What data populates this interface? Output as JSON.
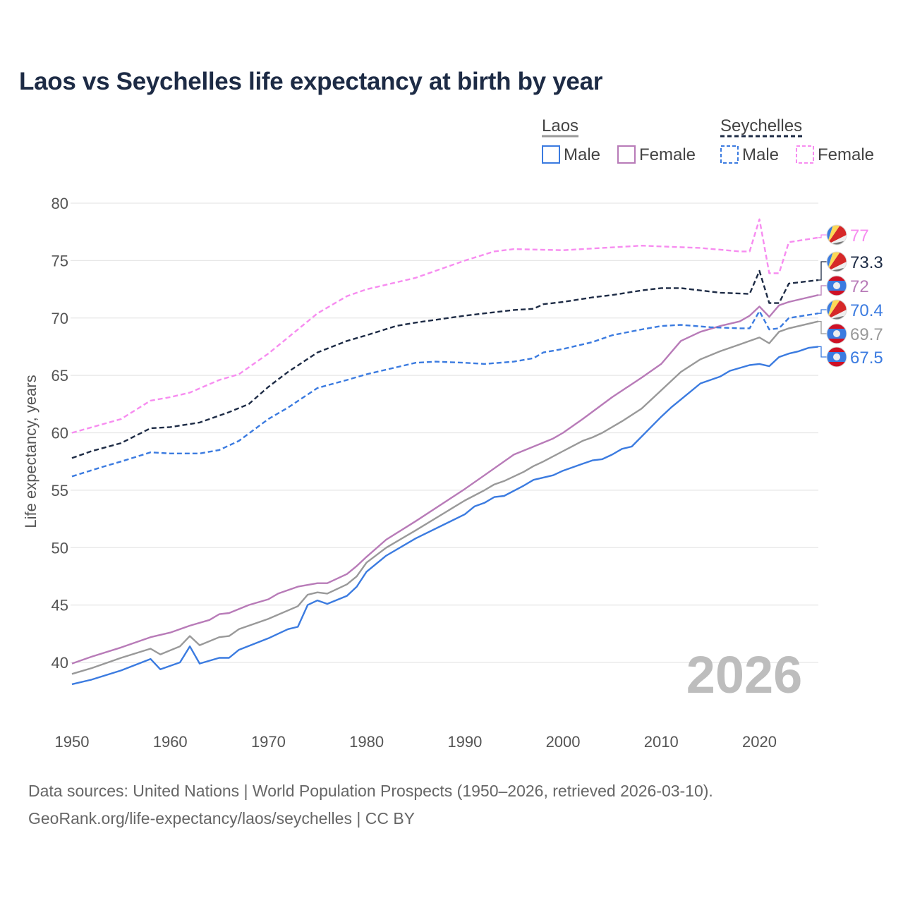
{
  "title": "Laos vs Seychelles life expectancy at birth by year",
  "legend": {
    "groups": [
      {
        "label": "Laos",
        "items": [
          "Male",
          "Female"
        ]
      },
      {
        "label": "Seychelles",
        "items": [
          "Male",
          "Female"
        ]
      }
    ]
  },
  "year_watermark": "2026",
  "footer": {
    "line1": "Data sources: United Nations | World Population Prospects (1950–2026, retrieved 2026-03-10).",
    "line2": "GeoRank.org/life-expectancy/laos/seychelles | CC BY"
  },
  "chart_data": {
    "type": "line",
    "title": "Laos vs Seychelles life expectancy at birth by year",
    "xlabel": "",
    "ylabel": "Life expectancy, years",
    "xlim": [
      1950,
      2026
    ],
    "ylim": [
      36,
      80
    ],
    "xticks": [
      "1950",
      "1960",
      "1970",
      "1980",
      "1990",
      "2000",
      "2010",
      "2020"
    ],
    "yticks": [
      "40",
      "45",
      "50",
      "55",
      "60",
      "65",
      "70",
      "75",
      "80"
    ],
    "grid": true,
    "legend_position": "top-right",
    "series": [
      {
        "name": "Seychelles Female",
        "country": "Seychelles",
        "color": "#f78cf0",
        "dashed": true,
        "end_label": "77",
        "x": [
          1950,
          1955,
          1958,
          1960,
          1962,
          1965,
          1967,
          1970,
          1972,
          1975,
          1978,
          1980,
          1985,
          1990,
          1993,
          1995,
          2000,
          2008,
          2014,
          2018,
          2019,
          2020,
          2021,
          2022,
          2023,
          2026
        ],
        "y": [
          60.0,
          61.2,
          62.8,
          63.1,
          63.5,
          64.6,
          65.1,
          66.9,
          68.3,
          70.4,
          71.9,
          72.5,
          73.5,
          75.0,
          75.8,
          76.0,
          75.9,
          76.3,
          76.1,
          75.8,
          75.8,
          78.6,
          73.9,
          73.9,
          76.6,
          77.0
        ]
      },
      {
        "name": "Seychelles",
        "country": "Seychelles",
        "color": "#1d2b45",
        "dashed": true,
        "end_label": "73.3",
        "x": [
          1950,
          1952,
          1955,
          1958,
          1960,
          1963,
          1966,
          1968,
          1970,
          1972,
          1975,
          1978,
          1980,
          1983,
          1985,
          1990,
          1992,
          1995,
          1997,
          1998,
          2000,
          2003,
          2005,
          2008,
          2010,
          2012,
          2014,
          2016,
          2019,
          2020,
          2021,
          2022,
          2023,
          2026
        ],
        "y": [
          57.8,
          58.4,
          59.1,
          60.4,
          60.5,
          60.9,
          61.8,
          62.5,
          64.0,
          65.3,
          67.0,
          68.0,
          68.5,
          69.3,
          69.6,
          70.2,
          70.4,
          70.7,
          70.8,
          71.2,
          71.4,
          71.8,
          72.0,
          72.4,
          72.6,
          72.6,
          72.4,
          72.2,
          72.1,
          74.1,
          71.3,
          71.3,
          73.0,
          73.3
        ]
      },
      {
        "name": "Laos Female",
        "country": "Laos",
        "color": "#b87bb8",
        "dashed": false,
        "end_label": "72",
        "x": [
          1950,
          1952,
          1955,
          1958,
          1960,
          1962,
          1964,
          1965,
          1966,
          1968,
          1970,
          1971,
          1973,
          1975,
          1976,
          1978,
          1979,
          1980,
          1982,
          1985,
          1990,
          1992,
          1995,
          1997,
          1999,
          2000,
          2002,
          2005,
          2008,
          2010,
          2012,
          2014,
          2016,
          2018,
          2019,
          2020,
          2021,
          2022,
          2023,
          2026
        ],
        "y": [
          39.9,
          40.5,
          41.3,
          42.2,
          42.6,
          43.2,
          43.7,
          44.2,
          44.3,
          45.0,
          45.5,
          46.0,
          46.6,
          46.9,
          46.9,
          47.7,
          48.4,
          49.2,
          50.7,
          52.3,
          55.1,
          56.3,
          58.1,
          58.8,
          59.5,
          60.0,
          61.2,
          63.1,
          64.8,
          66.0,
          68.0,
          68.8,
          69.3,
          69.7,
          70.2,
          71.0,
          70.1,
          71.1,
          71.4,
          72.0
        ]
      },
      {
        "name": "Seychelles Male",
        "country": "Seychelles",
        "color": "#3b7be0",
        "dashed": true,
        "end_label": "70.4",
        "x": [
          1950,
          1953,
          1955,
          1958,
          1960,
          1963,
          1965,
          1967,
          1970,
          1972,
          1975,
          1978,
          1980,
          1983,
          1985,
          1987,
          1990,
          1992,
          1995,
          1997,
          1998,
          2000,
          2003,
          2005,
          2008,
          2010,
          2012,
          2015,
          2018,
          2019,
          2020,
          2021,
          2022,
          2023,
          2026
        ],
        "y": [
          56.2,
          57.0,
          57.5,
          58.3,
          58.2,
          58.2,
          58.5,
          59.3,
          61.2,
          62.2,
          63.9,
          64.6,
          65.1,
          65.7,
          66.1,
          66.2,
          66.1,
          66.0,
          66.2,
          66.5,
          67.0,
          67.3,
          67.9,
          68.5,
          69.0,
          69.3,
          69.4,
          69.2,
          69.1,
          69.1,
          70.6,
          69.0,
          69.1,
          70.0,
          70.4
        ]
      },
      {
        "name": "Laos",
        "country": "Laos",
        "color": "#999999",
        "dashed": false,
        "end_label": "69.7",
        "x": [
          1950,
          1952,
          1955,
          1958,
          1959,
          1961,
          1962,
          1963,
          1965,
          1966,
          1967,
          1970,
          1973,
          1974,
          1975,
          1976,
          1978,
          1979,
          1980,
          1982,
          1985,
          1990,
          1992,
          1993,
          1994,
          1996,
          1997,
          1998,
          2000,
          2002,
          2003,
          2004,
          2006,
          2008,
          2010,
          2012,
          2014,
          2016,
          2018,
          2019,
          2020,
          2021,
          2022,
          2023,
          2026
        ],
        "y": [
          39.0,
          39.5,
          40.4,
          41.2,
          40.7,
          41.4,
          42.3,
          41.5,
          42.2,
          42.3,
          42.9,
          43.8,
          44.9,
          45.9,
          46.1,
          46.0,
          46.8,
          47.5,
          48.7,
          50.0,
          51.5,
          54.1,
          55.0,
          55.5,
          55.8,
          56.6,
          57.1,
          57.5,
          58.4,
          59.3,
          59.6,
          60.0,
          61.0,
          62.1,
          63.7,
          65.3,
          66.4,
          67.1,
          67.7,
          68.0,
          68.3,
          67.8,
          68.8,
          69.1,
          69.7
        ]
      },
      {
        "name": "Laos Male",
        "country": "Laos",
        "color": "#3b7be0",
        "dashed": false,
        "end_label": "67.5",
        "x": [
          1950,
          1952,
          1955,
          1958,
          1959,
          1961,
          1962,
          1963,
          1965,
          1966,
          1967,
          1970,
          1971,
          1972,
          1973,
          1974,
          1975,
          1976,
          1978,
          1979,
          1980,
          1982,
          1985,
          1990,
          1991,
          1992,
          1993,
          1994,
          1996,
          1997,
          1999,
          2000,
          2002,
          2003,
          2004,
          2005,
          2006,
          2007,
          2010,
          2011,
          2012,
          2014,
          2016,
          2017,
          2019,
          2020,
          2021,
          2022,
          2023,
          2024,
          2025,
          2026
        ],
        "y": [
          38.1,
          38.5,
          39.3,
          40.3,
          39.4,
          40.0,
          41.4,
          39.9,
          40.4,
          40.4,
          41.1,
          42.1,
          42.5,
          42.9,
          43.1,
          45.0,
          45.4,
          45.1,
          45.8,
          46.6,
          47.9,
          49.3,
          50.8,
          52.9,
          53.6,
          53.9,
          54.4,
          54.5,
          55.4,
          55.9,
          56.3,
          56.7,
          57.3,
          57.6,
          57.7,
          58.1,
          58.6,
          58.8,
          61.4,
          62.2,
          62.9,
          64.3,
          64.9,
          65.4,
          65.9,
          66.0,
          65.8,
          66.6,
          66.9,
          67.1,
          67.4,
          67.5
        ]
      }
    ]
  }
}
